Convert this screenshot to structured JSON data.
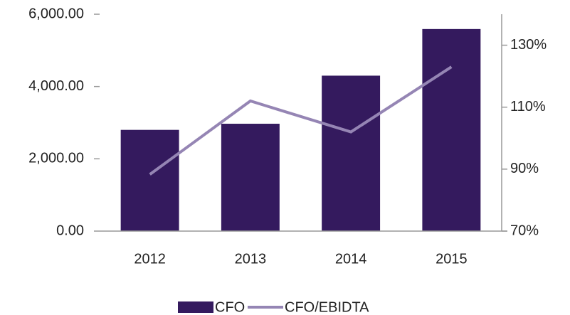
{
  "chart_data": {
    "type": "bar",
    "categories": [
      "2012",
      "2013",
      "2014",
      "2015"
    ],
    "series": [
      {
        "name": "CFO",
        "type": "bar",
        "color": "#341a5e",
        "values": [
          2800,
          2970,
          4300,
          5590
        ]
      },
      {
        "name": "CFO/EBIDTA",
        "type": "line",
        "axis": "y2",
        "color": "#9585b4",
        "values": [
          88.3,
          112,
          102,
          123
        ]
      }
    ],
    "ylim": [
      0,
      6000
    ],
    "yticks": [
      {
        "value": 0,
        "label": "0.00"
      },
      {
        "value": 2000,
        "label": "2,000.00"
      },
      {
        "value": 4000,
        "label": "4,000.00"
      },
      {
        "value": 6000,
        "label": "6,000.00"
      }
    ],
    "y2lim": [
      70,
      140
    ],
    "y2ticks": [
      {
        "value": 70,
        "label": "70%"
      },
      {
        "value": 90,
        "label": "90%"
      },
      {
        "value": 110,
        "label": "110%"
      },
      {
        "value": 130,
        "label": "130%"
      }
    ],
    "legend": "bottom"
  }
}
